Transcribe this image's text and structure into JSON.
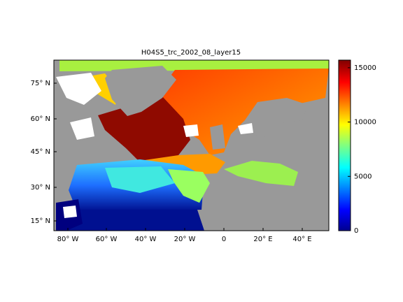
{
  "title": "H04S5_trc_2002_08_layer15",
  "map": {
    "lat_labels": [
      "75° N",
      "60° N",
      "45° N",
      "30° N",
      "15° N"
    ],
    "lon_labels": [
      "80° W",
      "60° W",
      "40° W",
      "20° W",
      "0",
      "20° E",
      "40° E"
    ]
  },
  "colorbar": {
    "lim": [
      0,
      15700
    ],
    "ticks": [
      0,
      5000,
      10000,
      15000
    ]
  }
}
